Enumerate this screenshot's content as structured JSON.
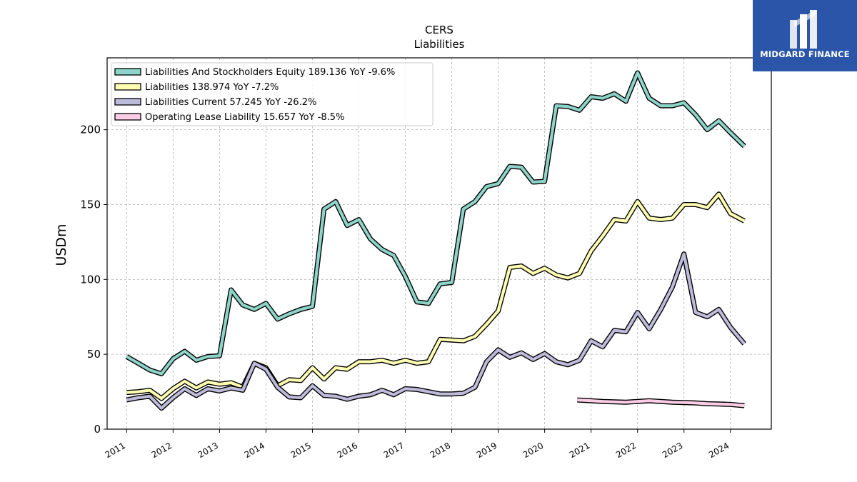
{
  "chart_data": {
    "type": "line",
    "title": "CERS",
    "subtitle": "Liabilities",
    "ylabel": "USDm",
    "xlabel": "",
    "ylim": [
      0,
      248
    ],
    "xlim": [
      2010.58,
      2024.88
    ],
    "yticks": [
      0,
      50,
      100,
      150,
      200
    ],
    "xticks": [
      "2011",
      "2012",
      "2013",
      "2014",
      "2015",
      "2016",
      "2017",
      "2018",
      "2019",
      "2020",
      "2021",
      "2022",
      "2023",
      "2024"
    ],
    "grid": true,
    "legend_position": "top-left",
    "series": [
      {
        "name": "Liabilities And Stockholders Equity",
        "legend": "Liabilities And Stockholders Equity  189.136 YoY -9.6%",
        "color": "#8dd3c7",
        "x": [
          2011.0,
          2011.25,
          2011.5,
          2011.75,
          2012.0,
          2012.25,
          2012.5,
          2012.75,
          2013.0,
          2013.25,
          2013.5,
          2013.75,
          2014.0,
          2014.25,
          2014.5,
          2014.75,
          2015.0,
          2015.25,
          2015.5,
          2015.75,
          2016.0,
          2016.25,
          2016.5,
          2016.75,
          2017.0,
          2017.25,
          2017.5,
          2017.75,
          2018.0,
          2018.25,
          2018.5,
          2018.75,
          2019.0,
          2019.25,
          2019.5,
          2019.75,
          2020.0,
          2020.25,
          2020.5,
          2020.75,
          2021.0,
          2021.25,
          2021.5,
          2021.75,
          2022.0,
          2022.25,
          2022.5,
          2022.75,
          2023.0,
          2023.25,
          2023.5,
          2023.75,
          2024.0,
          2024.3
        ],
        "values": [
          48.5,
          44,
          39.5,
          37,
          47,
          52,
          46,
          48.5,
          49,
          93,
          83,
          80,
          84,
          73.5,
          77,
          80,
          82,
          147,
          152,
          136,
          140,
          127,
          120,
          116,
          102,
          85,
          84,
          97,
          98,
          147,
          152,
          162,
          164,
          175.5,
          175,
          165,
          165.5,
          216,
          215.5,
          213,
          222,
          221,
          224,
          219,
          238,
          221,
          216,
          216,
          218,
          210,
          200,
          206,
          198,
          189
        ]
      },
      {
        "name": "Liabilities",
        "legend": "Liabilities  138.974 YoY -7.2%",
        "color": "#ffffb3",
        "x": [
          2011.0,
          2011.25,
          2011.5,
          2011.75,
          2012.0,
          2012.25,
          2012.5,
          2012.75,
          2013.0,
          2013.25,
          2013.5,
          2013.75,
          2014.0,
          2014.25,
          2014.5,
          2014.75,
          2015.0,
          2015.25,
          2015.5,
          2015.75,
          2016.0,
          2016.25,
          2016.5,
          2016.75,
          2017.0,
          2017.25,
          2017.5,
          2017.75,
          2018.0,
          2018.25,
          2018.5,
          2018.75,
          2019.0,
          2019.25,
          2019.5,
          2019.75,
          2020.0,
          2020.25,
          2020.5,
          2020.75,
          2021.0,
          2021.25,
          2021.5,
          2021.75,
          2022.0,
          2022.25,
          2022.5,
          2022.75,
          2023.0,
          2023.25,
          2023.5,
          2023.75,
          2024.0,
          2024.3
        ],
        "values": [
          24.5,
          25,
          26,
          20.5,
          27,
          32,
          27.5,
          31.5,
          30,
          31,
          28,
          44,
          41,
          29,
          33,
          32.5,
          41,
          33.5,
          41,
          40,
          45,
          45,
          46,
          44,
          46,
          44,
          45,
          60,
          59.5,
          59,
          62,
          70,
          79,
          108,
          109,
          104,
          107.5,
          103,
          101,
          104,
          119,
          129,
          140,
          139,
          152,
          141,
          140,
          141,
          150,
          150,
          148,
          157,
          144,
          139
        ]
      },
      {
        "name": "Liabilities Current",
        "legend": "Liabilities Current  57.245 YoY -26.2%",
        "color": "#bebada",
        "x": [
          2011.0,
          2011.25,
          2011.5,
          2011.75,
          2012.0,
          2012.25,
          2012.5,
          2012.75,
          2013.0,
          2013.25,
          2013.5,
          2013.75,
          2014.0,
          2014.25,
          2014.5,
          2014.75,
          2015.0,
          2015.25,
          2015.5,
          2015.75,
          2016.0,
          2016.25,
          2016.5,
          2016.75,
          2017.0,
          2017.25,
          2017.5,
          2017.75,
          2018.0,
          2018.25,
          2018.5,
          2018.75,
          2019.0,
          2019.25,
          2019.5,
          2019.75,
          2020.0,
          2020.25,
          2020.5,
          2020.75,
          2021.0,
          2021.25,
          2021.5,
          2021.75,
          2022.0,
          2022.25,
          2022.5,
          2022.75,
          2023.0,
          2023.25,
          2023.5,
          2023.75,
          2024.0,
          2024.3
        ],
        "values": [
          19.5,
          21,
          22,
          14,
          21,
          27,
          22.5,
          27,
          25.5,
          27.5,
          26,
          44,
          40,
          28,
          21.5,
          21,
          29,
          22.5,
          22,
          20,
          22,
          23,
          26,
          23,
          27,
          26.5,
          25,
          23.5,
          23.5,
          24,
          28,
          45,
          53,
          48,
          51,
          46.5,
          50.5,
          45,
          43,
          46,
          59,
          55,
          66,
          65,
          78,
          67,
          80,
          95,
          117,
          78,
          75,
          80,
          68,
          57
        ]
      },
      {
        "name": "Operating Lease Liability",
        "legend": "Operating Lease Liability  15.657 YoY -8.5%",
        "color": "#fccde5",
        "x": [
          2020.7,
          2021.0,
          2021.25,
          2021.5,
          2021.75,
          2022.0,
          2022.25,
          2022.5,
          2022.75,
          2023.0,
          2023.25,
          2023.5,
          2023.75,
          2024.0,
          2024.3
        ],
        "values": [
          19.5,
          19,
          18.5,
          18.2,
          18,
          18.5,
          19,
          18.5,
          18,
          17.8,
          17.5,
          17,
          16.8,
          16.5,
          15.7
        ]
      }
    ]
  },
  "watermark": {
    "brand": "MIDGARD FINANCE",
    "background": "#2a55a8"
  }
}
